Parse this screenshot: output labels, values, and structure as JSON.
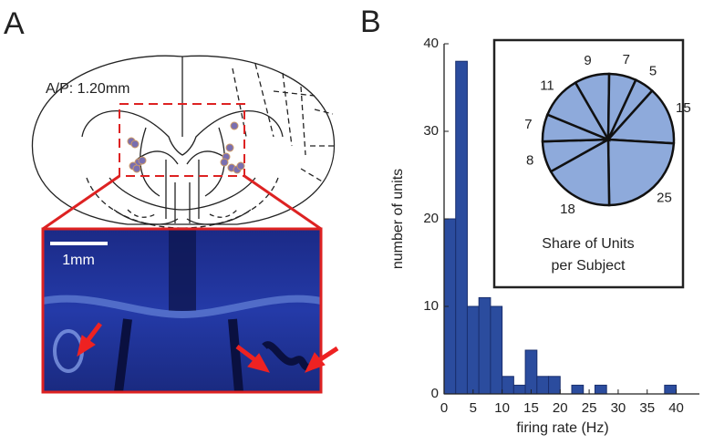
{
  "panel_a": {
    "label": "A",
    "coordinates": "A/P: 1.20mm",
    "scale_bar": "1mm"
  },
  "panel_b_label": "B",
  "chart_data": [
    {
      "type": "histogram",
      "bins": [
        0,
        2,
        4,
        6,
        8,
        10,
        12,
        14,
        16,
        18,
        20,
        22,
        24,
        26,
        28,
        30,
        32,
        34,
        36,
        38,
        40
      ],
      "values": [
        20,
        38,
        10,
        11,
        10,
        2,
        1,
        5,
        2,
        2,
        0,
        1,
        0,
        1,
        0,
        0,
        0,
        0,
        0,
        1
      ],
      "color": "#2b4c9e",
      "xlim": [
        0,
        44
      ],
      "xticks": [
        0,
        5,
        10,
        15,
        20,
        25,
        30,
        35,
        40
      ],
      "ylim": [
        0,
        40
      ],
      "yticks": [
        0,
        10,
        20,
        30,
        40
      ],
      "xlabel": "firing rate (Hz)",
      "ylabel": "number of units"
    },
    {
      "type": "pie",
      "values": [
        9,
        7,
        5,
        15,
        25,
        18,
        8,
        7,
        11
      ],
      "color": "#8eaadb",
      "title_lines": [
        "Share of Units",
        "per Subject"
      ]
    }
  ]
}
